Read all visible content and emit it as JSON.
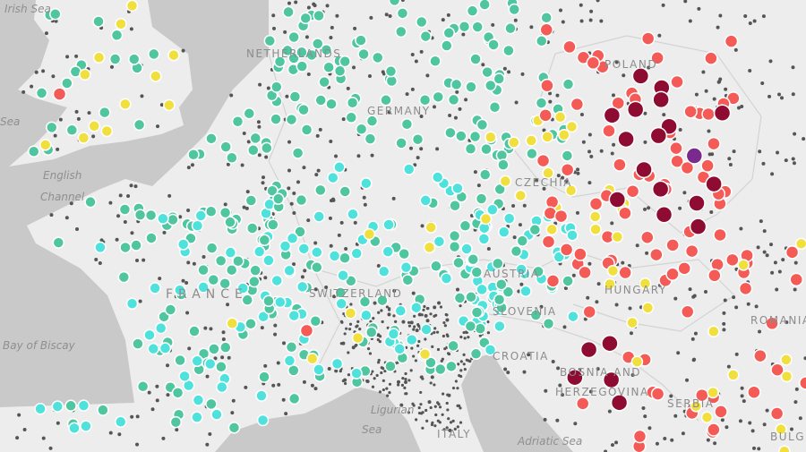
{
  "map": {
    "colors": {
      "sea": "#c9c9c9",
      "land": "#ededed",
      "border": "#d3d3d3",
      "good": "#4fc6a0",
      "fair": "#4fe2dc",
      "moderate": "#f0df3c",
      "poor": "#f45b57",
      "very_poor": "#8e0c32",
      "extremely_poor": "#7a2a8c",
      "station": "#555555"
    },
    "sea_labels": [
      "Irish Sea",
      "Sea",
      "English",
      "Channel",
      "Bay of Biscay",
      "Ligurian",
      "Sea",
      "Adriatic Sea"
    ],
    "country_labels": [
      "NETHERLANDS",
      "GERMANY",
      "POLAND",
      "CZECHIA",
      "AUSTRIA",
      "SWITZERLAND",
      "FRANCE",
      "HUNGARY",
      "SLOVENIA",
      "CROATIA",
      "BOSNIA AND",
      "HERZEGOVINA",
      "SERBIA",
      "ROMANIA",
      "BULG",
      "ITALY"
    ]
  }
}
